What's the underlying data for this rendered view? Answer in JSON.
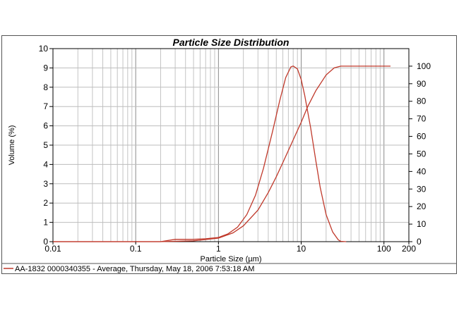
{
  "chart_data": {
    "type": "line",
    "title": "Particle Size Distribution",
    "xlabel": "Particle Size (µm)",
    "ylabel": "Volume (%)",
    "x_scale": "log",
    "xlim": [
      0.01,
      200
    ],
    "ylim": [
      0,
      10
    ],
    "y2lim": [
      0,
      110
    ],
    "grid": true,
    "x_ticks": [
      {
        "value": 0.01,
        "label": "0.01"
      },
      {
        "value": 0.1,
        "label": "0.1"
      },
      {
        "value": 1,
        "label": "1"
      },
      {
        "value": 10,
        "label": "10"
      },
      {
        "value": 100,
        "label": "100"
      },
      {
        "value": 200,
        "label": "200"
      }
    ],
    "y_ticks": [
      "0",
      "1",
      "2",
      "3",
      "4",
      "5",
      "6",
      "7",
      "8",
      "9",
      "10"
    ],
    "y2_ticks": [
      "0",
      "10",
      "20",
      "30",
      "40",
      "50",
      "60",
      "70",
      "80",
      "90",
      "100"
    ],
    "legend_label": "AA-1832 0000340355 - Average, Thursday, May 18, 2006 7:53:18 AM",
    "line_color": "#c0392b",
    "series": [
      {
        "axis": "left",
        "x": [
          0.01,
          0.2,
          0.3,
          0.5,
          0.7,
          1.0,
          1.3,
          1.7,
          2.2,
          2.8,
          3.5,
          4.5,
          5.5,
          6.5,
          7.5,
          8.0,
          9.0,
          10.0,
          11.0,
          13.0,
          15.0,
          17.0,
          20.0,
          24.0,
          28.0,
          30.0,
          35.0
        ],
        "y": [
          0,
          0,
          0.12,
          0.12,
          0.15,
          0.22,
          0.4,
          0.75,
          1.4,
          2.4,
          3.8,
          5.7,
          7.3,
          8.5,
          9.05,
          9.1,
          8.95,
          8.4,
          7.6,
          5.9,
          4.2,
          2.8,
          1.4,
          0.5,
          0.1,
          0.02,
          0
        ]
      },
      {
        "axis": "right",
        "x": [
          0.01,
          0.2,
          0.5,
          1.0,
          1.5,
          2.0,
          3.0,
          4.0,
          5.0,
          6.0,
          7.0,
          8.0,
          10.0,
          12.0,
          15.0,
          20.0,
          25.0,
          30.0,
          35.0,
          50.0,
          100.0,
          120.0
        ],
        "y": [
          0,
          0,
          0.5,
          2,
          5,
          9,
          18,
          28,
          37,
          45,
          52,
          58,
          68,
          77,
          86,
          95,
          99,
          100,
          100,
          100,
          100,
          100
        ]
      }
    ]
  }
}
